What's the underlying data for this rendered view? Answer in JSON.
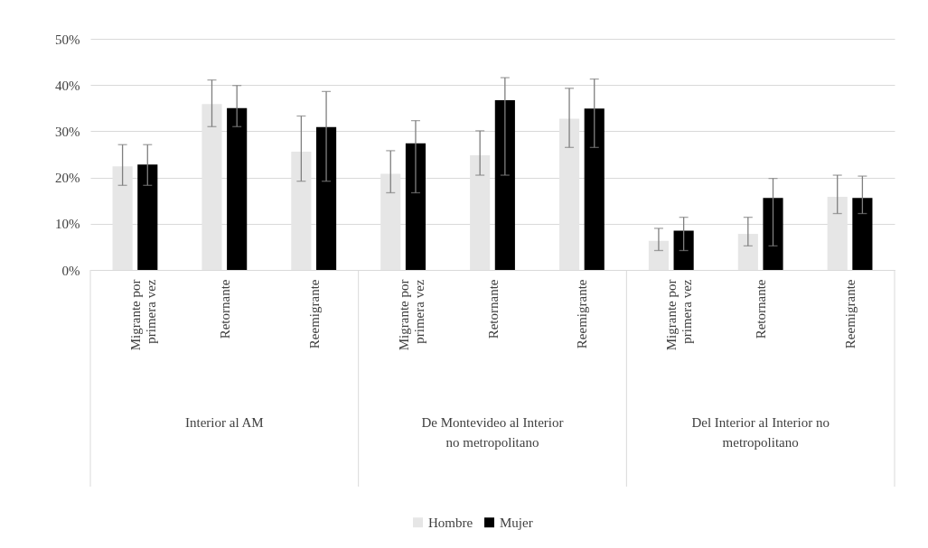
{
  "chart_data": {
    "type": "bar",
    "categories": [
      "Migrante por primera vez",
      "Retornante",
      "Reemigrante",
      "Migrante por primera vez",
      "Retornante",
      "Reemigrante",
      "Migrante por primera vez",
      "Retornante",
      "Reemigrante"
    ],
    "series": [
      {
        "name": "Hombre",
        "color": "#e6e6e6",
        "values": [
          22.4,
          35.9,
          25.6,
          20.8,
          24.8,
          32.7,
          6.3,
          7.8,
          15.8
        ],
        "errors": [
          [
            18.3,
            27.1
          ],
          [
            31.0,
            41.1
          ],
          [
            19.2,
            33.3
          ],
          [
            16.7,
            25.8
          ],
          [
            20.5,
            30.1
          ],
          [
            26.5,
            39.3
          ],
          [
            4.2,
            9.0
          ],
          [
            5.2,
            11.4
          ],
          [
            12.2,
            20.5
          ]
        ]
      },
      {
        "name": "Mujer",
        "color": "#000000",
        "values": [
          22.8,
          35.0,
          30.9,
          27.4,
          36.7,
          34.9,
          8.5,
          15.6,
          15.6
        ],
        "errors": [
          [
            18.3,
            27.1
          ],
          [
            31.0,
            39.9
          ],
          [
            19.2,
            38.6
          ],
          [
            16.7,
            32.3
          ],
          [
            20.5,
            41.6
          ],
          [
            26.5,
            41.3
          ],
          [
            4.2,
            11.4
          ],
          [
            5.2,
            19.8
          ],
          [
            12.2,
            20.3
          ]
        ]
      }
    ],
    "annotations": [
      "Interior al AM",
      "De Montevideo al Interior no metropolitano",
      "Del Interior al Interior no metropolitano"
    ],
    "ylim": [
      0,
      50
    ],
    "yticks": [
      {
        "value": 0,
        "label": "0%"
      },
      {
        "value": 10,
        "label": "10%"
      },
      {
        "value": 20,
        "label": "20%"
      },
      {
        "value": 30,
        "label": "30%"
      },
      {
        "value": 40,
        "label": "40%"
      },
      {
        "value": 50,
        "label": "50%"
      }
    ],
    "grid": "y",
    "legend": "bottom"
  }
}
